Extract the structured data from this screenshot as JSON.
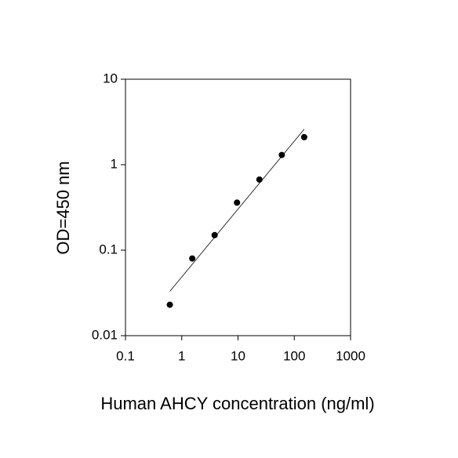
{
  "chart_data": {
    "type": "scatter",
    "x_label": "Human AHCY concentration (ng/ml)",
    "y_label": "OD=450 nm",
    "x": [
      0.614,
      1.536,
      3.84,
      9.6,
      24,
      60,
      150
    ],
    "values": [
      0.023,
      0.08,
      0.15,
      0.36,
      0.67,
      1.3,
      2.1
    ],
    "color": "#000000",
    "fit_line": {
      "x": [
        0.614,
        150
      ],
      "values": [
        0.033,
        2.6
      ]
    },
    "x_log": true,
    "y_log": true,
    "xlim": [
      0.1,
      1000
    ],
    "ylim": [
      0.01,
      10
    ],
    "xticks": [
      0.1,
      1,
      10,
      100,
      1000
    ],
    "yticks": [
      0.01,
      0.1,
      1,
      10
    ]
  }
}
